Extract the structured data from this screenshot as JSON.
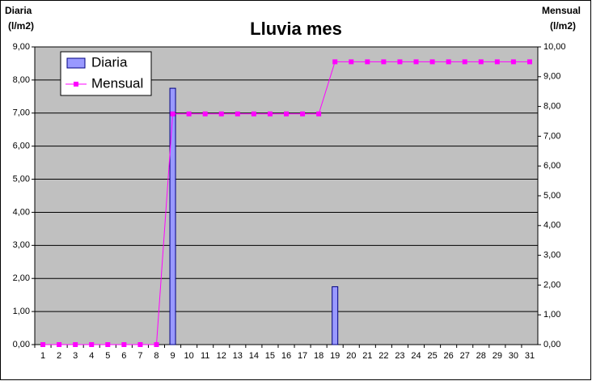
{
  "chart_data": {
    "type": "bar-line",
    "title": "Lluvia mes",
    "ylabel": [
      "Diaria",
      "(l/m2)"
    ],
    "y2label": [
      "Mensual",
      "(l/m2)"
    ],
    "categories": [
      "1",
      "2",
      "3",
      "4",
      "5",
      "6",
      "7",
      "8",
      "9",
      "10",
      "11",
      "12",
      "13",
      "14",
      "15",
      "16",
      "17",
      "18",
      "19",
      "20",
      "21",
      "22",
      "23",
      "24",
      "25",
      "26",
      "27",
      "28",
      "29",
      "30",
      "31"
    ],
    "series": [
      {
        "name": "Diaria",
        "type": "bar",
        "color": "#9999ff",
        "values": [
          0,
          0,
          0,
          0,
          0,
          0,
          0,
          0,
          7.75,
          0,
          0,
          0,
          0,
          0,
          0,
          0,
          0,
          0,
          1.75,
          0,
          0,
          0,
          0,
          0,
          0,
          0,
          0,
          0,
          0,
          0,
          0
        ]
      },
      {
        "name": "Mensual",
        "type": "line",
        "color": "#ff00ff",
        "axis": "y2",
        "values": [
          0,
          0,
          0,
          0,
          0,
          0,
          0,
          0,
          7.75,
          7.75,
          7.75,
          7.75,
          7.75,
          7.75,
          7.75,
          7.75,
          7.75,
          7.75,
          9.5,
          9.5,
          9.5,
          9.5,
          9.5,
          9.5,
          9.5,
          9.5,
          9.5,
          9.5,
          9.5,
          9.5,
          9.5
        ]
      }
    ],
    "ylim": [
      0,
      9
    ],
    "yticks": [
      {
        "value": 0,
        "label": "0,00"
      },
      {
        "value": 1,
        "label": "1,00"
      },
      {
        "value": 2,
        "label": "2,00"
      },
      {
        "value": 3,
        "label": "3,00"
      },
      {
        "value": 4,
        "label": "4,00"
      },
      {
        "value": 5,
        "label": "5,00"
      },
      {
        "value": 6,
        "label": "6,00"
      },
      {
        "value": 7,
        "label": "7,00"
      },
      {
        "value": 8,
        "label": "8,00"
      },
      {
        "value": 9,
        "label": "9,00"
      }
    ],
    "y2lim": [
      0,
      10
    ],
    "y2ticks": [
      {
        "value": 0,
        "label": "0,00"
      },
      {
        "value": 1,
        "label": "1,00"
      },
      {
        "value": 2,
        "label": "2,00"
      },
      {
        "value": 3,
        "label": "3,00"
      },
      {
        "value": 4,
        "label": "4,00"
      },
      {
        "value": 5,
        "label": "5,00"
      },
      {
        "value": 6,
        "label": "6,00"
      },
      {
        "value": 7,
        "label": "7,00"
      },
      {
        "value": 8,
        "label": "8,00"
      },
      {
        "value": 9,
        "label": "9,00"
      },
      {
        "value": 10,
        "label": "10,00"
      }
    ],
    "grid": true,
    "legend": "upper-left",
    "plot_background": "#c0c0c0"
  }
}
